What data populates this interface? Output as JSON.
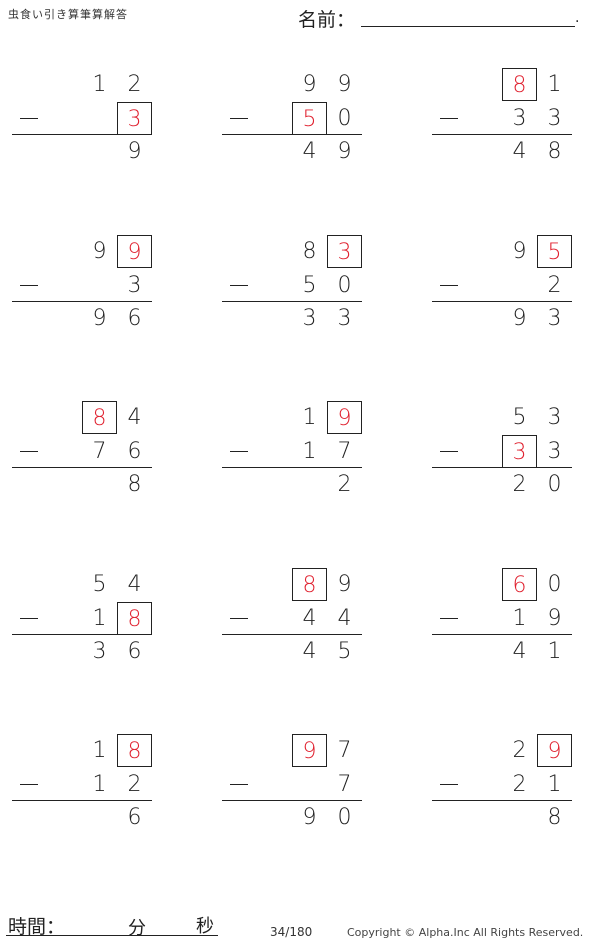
{
  "header": {
    "title": "虫食い引き算筆算解答",
    "name_label": "名前：",
    "name_end": "."
  },
  "footer": {
    "time_label": "時間：",
    "minutes_label": "分",
    "seconds_label": "秒",
    "page": "34/180",
    "copyright": "Copyright © Alpha.Inc All Rights Reserved."
  },
  "colors": {
    "answer": "#e0202e",
    "text": "#222222"
  },
  "problems": [
    {
      "top": [
        "1",
        "2"
      ],
      "bottom": [
        "",
        "3"
      ],
      "answer": [
        "",
        "9"
      ],
      "boxed": [
        "bottom.1"
      ]
    },
    {
      "top": [
        "9",
        "9"
      ],
      "bottom": [
        "5",
        "0"
      ],
      "answer": [
        "4",
        "9"
      ],
      "boxed": [
        "bottom.0"
      ]
    },
    {
      "top": [
        "8",
        "1"
      ],
      "bottom": [
        "3",
        "3"
      ],
      "answer": [
        "4",
        "8"
      ],
      "boxed": [
        "top.0"
      ]
    },
    {
      "top": [
        "9",
        "9"
      ],
      "bottom": [
        "",
        "3"
      ],
      "answer": [
        "9",
        "6"
      ],
      "boxed": [
        "top.1"
      ]
    },
    {
      "top": [
        "8",
        "3"
      ],
      "bottom": [
        "5",
        "0"
      ],
      "answer": [
        "3",
        "3"
      ],
      "boxed": [
        "top.1"
      ]
    },
    {
      "top": [
        "9",
        "5"
      ],
      "bottom": [
        "",
        "2"
      ],
      "answer": [
        "9",
        "3"
      ],
      "boxed": [
        "top.1"
      ]
    },
    {
      "top": [
        "8",
        "4"
      ],
      "bottom": [
        "7",
        "6"
      ],
      "answer": [
        "",
        "8"
      ],
      "boxed": [
        "top.0"
      ]
    },
    {
      "top": [
        "1",
        "9"
      ],
      "bottom": [
        "1",
        "7"
      ],
      "answer": [
        "",
        "2"
      ],
      "boxed": [
        "top.1"
      ]
    },
    {
      "top": [
        "5",
        "3"
      ],
      "bottom": [
        "3",
        "3"
      ],
      "answer": [
        "2",
        "0"
      ],
      "boxed": [
        "bottom.0"
      ]
    },
    {
      "top": [
        "5",
        "4"
      ],
      "bottom": [
        "1",
        "8"
      ],
      "answer": [
        "3",
        "6"
      ],
      "boxed": [
        "bottom.1"
      ]
    },
    {
      "top": [
        "8",
        "9"
      ],
      "bottom": [
        "4",
        "4"
      ],
      "answer": [
        "4",
        "5"
      ],
      "boxed": [
        "top.0"
      ]
    },
    {
      "top": [
        "6",
        "0"
      ],
      "bottom": [
        "1",
        "9"
      ],
      "answer": [
        "4",
        "1"
      ],
      "boxed": [
        "top.0"
      ]
    },
    {
      "top": [
        "1",
        "8"
      ],
      "bottom": [
        "1",
        "2"
      ],
      "answer": [
        "",
        "6"
      ],
      "boxed": [
        "top.1"
      ]
    },
    {
      "top": [
        "9",
        "7"
      ],
      "bottom": [
        "",
        "7"
      ],
      "answer": [
        "9",
        "0"
      ],
      "boxed": [
        "top.0"
      ]
    },
    {
      "top": [
        "2",
        "9"
      ],
      "bottom": [
        "2",
        "1"
      ],
      "answer": [
        "",
        "8"
      ],
      "boxed": [
        "top.1"
      ]
    }
  ]
}
